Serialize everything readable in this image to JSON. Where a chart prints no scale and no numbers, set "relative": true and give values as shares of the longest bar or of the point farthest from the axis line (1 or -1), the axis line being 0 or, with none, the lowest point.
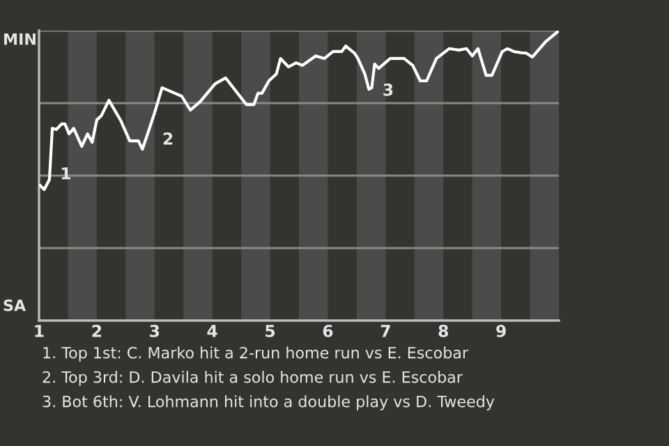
{
  "chart_data": {
    "type": "line",
    "relative": true,
    "x": [
      1.02,
      1.09,
      1.18,
      1.23,
      1.3,
      1.39,
      1.45,
      1.52,
      1.6,
      1.74,
      1.84,
      1.92,
      2.0,
      2.08,
      2.21,
      2.42,
      2.57,
      2.72,
      2.79,
      2.88,
      3.0,
      3.13,
      3.47,
      3.62,
      3.79,
      4.05,
      4.23,
      4.59,
      4.72,
      4.79,
      4.86,
      4.98,
      5.11,
      5.18,
      5.32,
      5.45,
      5.56,
      5.79,
      5.94,
      6.09,
      6.24,
      6.31,
      6.46,
      6.52,
      6.64,
      6.71,
      6.76,
      6.81,
      6.88,
      7.08,
      7.32,
      7.47,
      7.6,
      7.71,
      7.88,
      8.1,
      8.27,
      8.4,
      8.5,
      8.6,
      8.74,
      8.84,
      9.02,
      9.11,
      9.22,
      9.37,
      9.43,
      9.54,
      9.77,
      10.0
    ],
    "series": [
      {
        "color": "#ffffff",
        "values": [
          0.466,
          0.452,
          0.486,
          0.663,
          0.659,
          0.678,
          0.678,
          0.644,
          0.663,
          0.601,
          0.644,
          0.615,
          0.692,
          0.707,
          0.76,
          0.688,
          0.62,
          0.62,
          0.591,
          0.644,
          0.716,
          0.803,
          0.774,
          0.726,
          0.755,
          0.817,
          0.837,
          0.745,
          0.745,
          0.784,
          0.784,
          0.827,
          0.851,
          0.904,
          0.875,
          0.889,
          0.88,
          0.913,
          0.904,
          0.928,
          0.928,
          0.947,
          0.923,
          0.904,
          0.851,
          0.798,
          0.803,
          0.885,
          0.87,
          0.904,
          0.904,
          0.88,
          0.827,
          0.827,
          0.904,
          0.938,
          0.933,
          0.938,
          0.913,
          0.938,
          0.846,
          0.846,
          0.928,
          0.938,
          0.928,
          0.923,
          0.923,
          0.909,
          0.962,
          1.0
        ]
      }
    ],
    "xlim": [
      1,
      10
    ],
    "xticks": [
      1,
      2,
      3,
      4,
      5,
      6,
      7,
      8,
      9
    ],
    "grid": "y",
    "marker": "none",
    "line_style": "solid",
    "bands": [
      {
        "axis": "x",
        "from": 1.5,
        "to": 2,
        "color": "#4c4b49"
      },
      {
        "axis": "x",
        "from": 2.5,
        "to": 3,
        "color": "#4c4b49"
      },
      {
        "axis": "x",
        "from": 3.5,
        "to": 4,
        "color": "#4c4b49"
      },
      {
        "axis": "x",
        "from": 4.5,
        "to": 5,
        "color": "#4c4b49"
      },
      {
        "axis": "x",
        "from": 5.5,
        "to": 6,
        "color": "#4c4b49"
      },
      {
        "axis": "x",
        "from": 6.5,
        "to": 7,
        "color": "#4c4b49"
      },
      {
        "axis": "x",
        "from": 7.5,
        "to": 8,
        "color": "#4c4b49"
      },
      {
        "axis": "x",
        "from": 8.5,
        "to": 9,
        "color": "#4c4b49"
      },
      {
        "axis": "x",
        "from": 9.5,
        "to": 10,
        "color": "#4c4b49"
      }
    ],
    "annotations": [
      "MIN",
      "SA",
      {
        "text": "1",
        "x": 1.23,
        "y": 0.663
      },
      {
        "text": "2",
        "x": 3.0,
        "y": 0.716
      },
      {
        "text": "3",
        "x": 6.71,
        "y": 0.798
      },
      "1. Top 1st: C. Marko hit a 2-run home run vs E. Escobar",
      "2. Top 3rd: D. Davila hit a solo home run vs E. Escobar",
      "3. Bot 6th: V. Lohmann hit into a double play vs D. Tweedy"
    ]
  }
}
